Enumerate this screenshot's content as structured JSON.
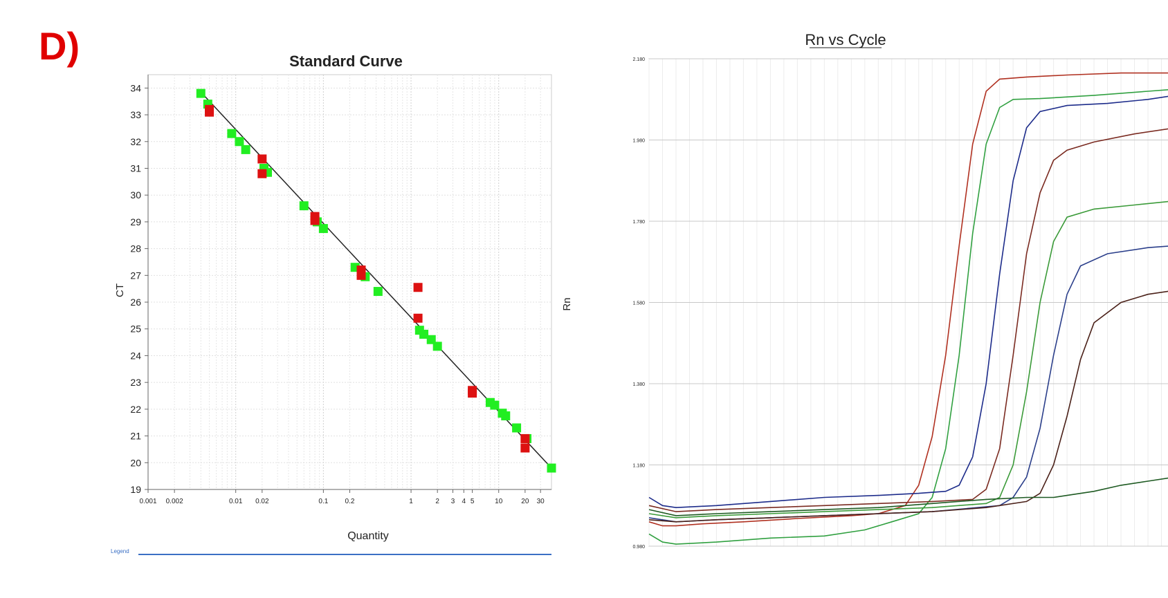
{
  "panel_label": "D)",
  "panel_label_color": "#e00000",
  "legend_stub": "Legend",
  "chart_data": [
    {
      "type": "scatter",
      "title": "Standard Curve",
      "xlabel": "Quantity",
      "ylabel": "CT",
      "x_scale": "log",
      "xlim": [
        0.001,
        40
      ],
      "ylim": [
        19,
        34.5
      ],
      "grid": true,
      "x_ticks": [
        0.001,
        0.002,
        0.01,
        0.02,
        0.1,
        0.2,
        1,
        2,
        3,
        4,
        5,
        10,
        20,
        30
      ],
      "x_tick_labels": [
        "0.001",
        "0.002",
        "0.01",
        "0.02",
        "0.1",
        "0.2",
        "1",
        "2",
        "3",
        "4",
        "5",
        "10",
        "20",
        "30"
      ],
      "y_ticks": [
        19,
        20,
        21,
        22,
        23,
        24,
        25,
        26,
        27,
        28,
        29,
        30,
        31,
        32,
        33,
        34
      ],
      "fit_line": {
        "x": [
          0.004,
          40
        ],
        "y": [
          33.85,
          19.8
        ],
        "color": "#222222"
      },
      "series": [
        {
          "color": "#22ee22",
          "points": [
            [
              0.004,
              33.8
            ],
            [
              0.0048,
              33.4
            ],
            [
              0.009,
              32.3
            ],
            [
              0.011,
              32.0
            ],
            [
              0.013,
              31.7
            ],
            [
              0.021,
              31.0
            ],
            [
              0.023,
              30.85
            ],
            [
              0.06,
              29.6
            ],
            [
              0.085,
              29.0
            ],
            [
              0.1,
              28.75
            ],
            [
              0.23,
              27.3
            ],
            [
              0.3,
              26.95
            ],
            [
              0.42,
              26.4
            ],
            [
              1.25,
              24.95
            ],
            [
              1.4,
              24.8
            ],
            [
              1.7,
              24.6
            ],
            [
              2.0,
              24.35
            ],
            [
              8.0,
              22.25
            ],
            [
              9.0,
              22.15
            ],
            [
              11.0,
              21.85
            ],
            [
              12.0,
              21.75
            ],
            [
              16.0,
              21.3
            ],
            [
              21.0,
              20.9
            ],
            [
              40.0,
              19.8
            ]
          ]
        },
        {
          "color": "#dd1111",
          "points": [
            [
              0.005,
              33.2
            ],
            [
              0.005,
              33.1
            ],
            [
              0.02,
              31.35
            ],
            [
              0.02,
              30.8
            ],
            [
              0.08,
              29.2
            ],
            [
              0.08,
              29.05
            ],
            [
              0.27,
              27.2
            ],
            [
              0.27,
              27.0
            ],
            [
              1.2,
              26.55
            ],
            [
              1.2,
              25.4
            ],
            [
              5.0,
              22.7
            ],
            [
              5.0,
              22.6
            ],
            [
              20.0,
              20.9
            ],
            [
              20.0,
              20.55
            ]
          ]
        }
      ]
    },
    {
      "type": "line",
      "title": "Rn vs Cycle",
      "ylabel": "Rn",
      "xlim": [
        1,
        40
      ],
      "ylim": [
        0.98,
        2.18
      ],
      "y_ticks": [
        0.98,
        1.18,
        1.38,
        1.58,
        1.78,
        1.98,
        2.18
      ],
      "y_tick_labels": [
        "0.980",
        "1.180",
        "1.380",
        "1.580",
        "1.780",
        "1.980",
        "2.180"
      ],
      "grid": true,
      "series": [
        {
          "color": "#b03020",
          "points": [
            [
              1,
              1.04
            ],
            [
              2,
              1.03
            ],
            [
              3,
              1.03
            ],
            [
              5,
              1.035
            ],
            [
              8,
              1.04
            ],
            [
              12,
              1.048
            ],
            [
              16,
              1.055
            ],
            [
              18,
              1.06
            ],
            [
              20,
              1.08
            ],
            [
              21,
              1.13
            ],
            [
              22,
              1.25
            ],
            [
              23,
              1.45
            ],
            [
              24,
              1.72
            ],
            [
              25,
              1.97
            ],
            [
              26,
              2.1
            ],
            [
              27,
              2.13
            ],
            [
              29,
              2.135
            ],
            [
              32,
              2.14
            ],
            [
              36,
              2.145
            ],
            [
              40,
              2.145
            ]
          ]
        },
        {
          "color": "#30a040",
          "points": [
            [
              1,
              1.01
            ],
            [
              2,
              0.99
            ],
            [
              3,
              0.985
            ],
            [
              6,
              0.99
            ],
            [
              10,
              1.0
            ],
            [
              14,
              1.005
            ],
            [
              17,
              1.02
            ],
            [
              19,
              1.04
            ],
            [
              21,
              1.06
            ],
            [
              22,
              1.1
            ],
            [
              23,
              1.22
            ],
            [
              24,
              1.45
            ],
            [
              25,
              1.75
            ],
            [
              26,
              1.97
            ],
            [
              27,
              2.06
            ],
            [
              28,
              2.08
            ],
            [
              30,
              2.082
            ],
            [
              34,
              2.09
            ],
            [
              38,
              2.1
            ],
            [
              40,
              2.105
            ]
          ]
        },
        {
          "color": "#1c2b8a",
          "points": [
            [
              1,
              1.1
            ],
            [
              2,
              1.08
            ],
            [
              3,
              1.075
            ],
            [
              6,
              1.08
            ],
            [
              10,
              1.09
            ],
            [
              14,
              1.1
            ],
            [
              18,
              1.105
            ],
            [
              21,
              1.11
            ],
            [
              23,
              1.115
            ],
            [
              24,
              1.13
            ],
            [
              25,
              1.2
            ],
            [
              26,
              1.38
            ],
            [
              27,
              1.65
            ],
            [
              28,
              1.88
            ],
            [
              29,
              2.01
            ],
            [
              30,
              2.05
            ],
            [
              32,
              2.065
            ],
            [
              35,
              2.07
            ],
            [
              38,
              2.08
            ],
            [
              40,
              2.09
            ]
          ]
        },
        {
          "color": "#7a2a20",
          "points": [
            [
              1,
              1.08
            ],
            [
              3,
              1.065
            ],
            [
              6,
              1.07
            ],
            [
              10,
              1.075
            ],
            [
              14,
              1.08
            ],
            [
              18,
              1.085
            ],
            [
              22,
              1.09
            ],
            [
              25,
              1.095
            ],
            [
              26,
              1.12
            ],
            [
              27,
              1.22
            ],
            [
              28,
              1.45
            ],
            [
              29,
              1.7
            ],
            [
              30,
              1.85
            ],
            [
              31,
              1.93
            ],
            [
              32,
              1.955
            ],
            [
              34,
              1.975
            ],
            [
              37,
              1.995
            ],
            [
              40,
              2.01
            ]
          ]
        },
        {
          "color": "#3a9a38",
          "points": [
            [
              1,
              1.06
            ],
            [
              3,
              1.05
            ],
            [
              6,
              1.055
            ],
            [
              10,
              1.06
            ],
            [
              14,
              1.065
            ],
            [
              18,
              1.07
            ],
            [
              22,
              1.075
            ],
            [
              26,
              1.085
            ],
            [
              27,
              1.1
            ],
            [
              28,
              1.18
            ],
            [
              29,
              1.36
            ],
            [
              30,
              1.58
            ],
            [
              31,
              1.73
            ],
            [
              32,
              1.79
            ],
            [
              34,
              1.81
            ],
            [
              37,
              1.82
            ],
            [
              40,
              1.83
            ]
          ]
        },
        {
          "color": "#2a3e8a",
          "points": [
            [
              1,
              1.05
            ],
            [
              3,
              1.04
            ],
            [
              6,
              1.045
            ],
            [
              10,
              1.05
            ],
            [
              14,
              1.055
            ],
            [
              18,
              1.06
            ],
            [
              22,
              1.065
            ],
            [
              27,
              1.08
            ],
            [
              28,
              1.1
            ],
            [
              29,
              1.15
            ],
            [
              30,
              1.27
            ],
            [
              31,
              1.45
            ],
            [
              32,
              1.6
            ],
            [
              33,
              1.67
            ],
            [
              35,
              1.7
            ],
            [
              38,
              1.715
            ],
            [
              40,
              1.72
            ]
          ]
        },
        {
          "color": "#4a2018",
          "points": [
            [
              1,
              1.045
            ],
            [
              3,
              1.04
            ],
            [
              6,
              1.045
            ],
            [
              10,
              1.05
            ],
            [
              14,
              1.055
            ],
            [
              18,
              1.06
            ],
            [
              22,
              1.065
            ],
            [
              26,
              1.075
            ],
            [
              29,
              1.09
            ],
            [
              30,
              1.11
            ],
            [
              31,
              1.18
            ],
            [
              32,
              1.3
            ],
            [
              33,
              1.44
            ],
            [
              34,
              1.53
            ],
            [
              36,
              1.58
            ],
            [
              38,
              1.6
            ],
            [
              40,
              1.61
            ]
          ]
        },
        {
          "color": "#1e5a22",
          "points": [
            [
              1,
              1.07
            ],
            [
              3,
              1.055
            ],
            [
              6,
              1.06
            ],
            [
              10,
              1.065
            ],
            [
              14,
              1.07
            ],
            [
              18,
              1.075
            ],
            [
              22,
              1.085
            ],
            [
              26,
              1.095
            ],
            [
              29,
              1.1
            ],
            [
              31,
              1.1
            ],
            [
              32,
              1.105
            ],
            [
              34,
              1.115
            ],
            [
              36,
              1.13
            ],
            [
              38,
              1.14
            ],
            [
              40,
              1.15
            ]
          ]
        }
      ]
    }
  ]
}
